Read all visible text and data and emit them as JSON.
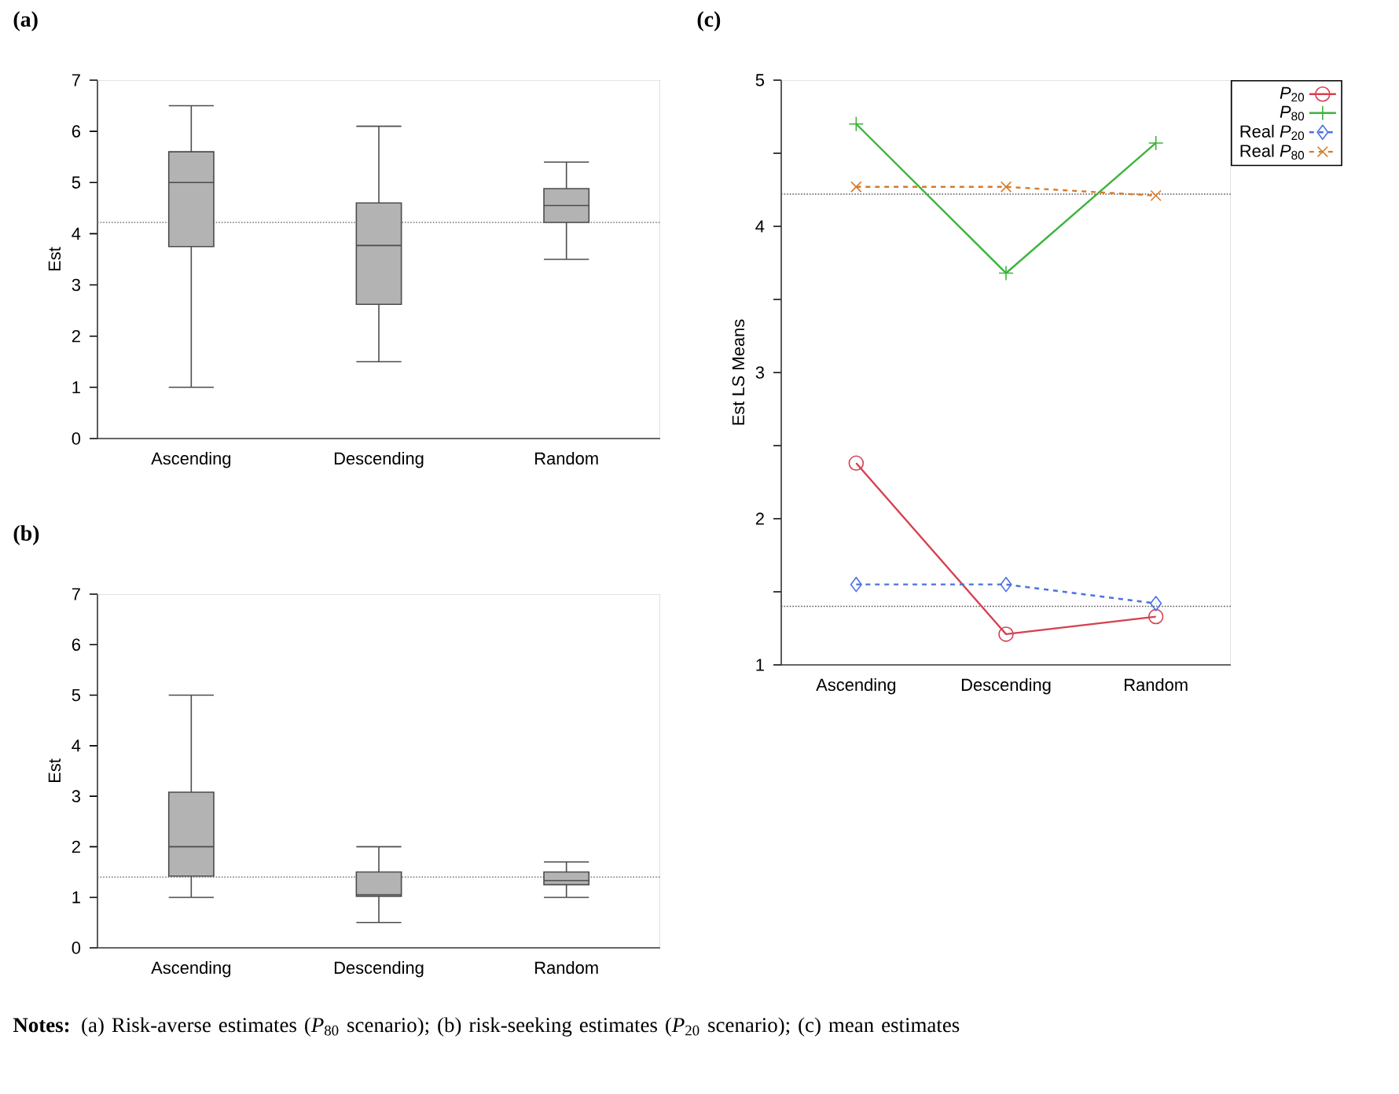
{
  "chart_data": [
    {
      "type": "box",
      "title": "(a)",
      "ylabel": "Est",
      "categories": [
        "Ascending",
        "Descending",
        "Random"
      ],
      "color": "#b3b3b3",
      "ylim": [
        0,
        7
      ],
      "yticks": [
        0,
        1,
        2,
        3,
        4,
        5,
        6,
        7
      ],
      "boxes": [
        {
          "low": 1.0,
          "q1": 3.75,
          "median": 5.0,
          "q3": 5.6,
          "high": 6.5
        },
        {
          "low": 1.5,
          "q1": 2.62,
          "median": 3.77,
          "q3": 4.6,
          "high": 6.1
        },
        {
          "low": 3.5,
          "q1": 4.22,
          "median": 4.55,
          "q3": 4.88,
          "high": 5.4
        }
      ],
      "ref_lines": [
        {
          "axis": "y",
          "value": 4.22,
          "color": "#777777",
          "line_style": "dotted"
        }
      ]
    },
    {
      "type": "box",
      "title": "(b)",
      "ylabel": "Est",
      "categories": [
        "Ascending",
        "Descending",
        "Random"
      ],
      "color": "#b3b3b3",
      "ylim": [
        0,
        7
      ],
      "yticks": [
        0,
        1,
        2,
        3,
        4,
        5,
        6,
        7
      ],
      "boxes": [
        {
          "low": 1.0,
          "q1": 1.42,
          "median": 2.0,
          "q3": 3.08,
          "high": 5.0
        },
        {
          "low": 0.5,
          "q1": 1.02,
          "median": 1.05,
          "q3": 1.5,
          "high": 2.0
        },
        {
          "low": 1.0,
          "q1": 1.25,
          "median": 1.33,
          "q3": 1.5,
          "high": 1.7
        }
      ],
      "ref_lines": [
        {
          "axis": "y",
          "value": 1.4,
          "color": "#777777",
          "line_style": "dotted"
        }
      ]
    },
    {
      "type": "line",
      "title": "(c)",
      "ylabel": "Est LS Means",
      "categories": [
        "Ascending",
        "Descending",
        "Random"
      ],
      "ylim": [
        1,
        5
      ],
      "yticks": [
        1,
        {
          "value": 1.5,
          "label": null
        },
        2,
        {
          "value": 2.5,
          "label": null
        },
        3,
        {
          "value": 3.5,
          "label": null
        },
        4,
        {
          "value": 4.5,
          "label": null
        },
        5
      ],
      "legend": "top right",
      "series": [
        {
          "name": "*P*$_{20}$",
          "color": "#d64050",
          "values": [
            2.38,
            1.21,
            1.33
          ],
          "marker": "circle",
          "line_style": "solid"
        },
        {
          "name": "*P*$_{80}$",
          "color": "#3cb43c",
          "values": [
            4.7,
            3.68,
            4.57
          ],
          "marker": "plus",
          "line_style": "solid"
        },
        {
          "name": "Real *P*$_{20}$",
          "color": "#4a72e0",
          "values": [
            1.55,
            1.55,
            1.42
          ],
          "marker": "diamond",
          "line_style": "dashed"
        },
        {
          "name": "Real *P*$_{80}$",
          "color": "#d87a28",
          "values": [
            4.27,
            4.27,
            4.21
          ],
          "marker": "cross",
          "line_style": "dashed"
        }
      ],
      "ref_lines": [
        {
          "axis": "y",
          "value": 4.22,
          "color": "#555555",
          "line_style": "dotted"
        },
        {
          "axis": "y",
          "value": 1.4,
          "color": "#555555",
          "line_style": "dotted"
        }
      ],
      "annotations": [
        "**Notes:** (a) Risk-averse estimates (*P*$_{80}$ scenario); (b) risk-seeking estimates (*P*$_{20}$ scenario); (c) mean estimates"
      ]
    }
  ]
}
